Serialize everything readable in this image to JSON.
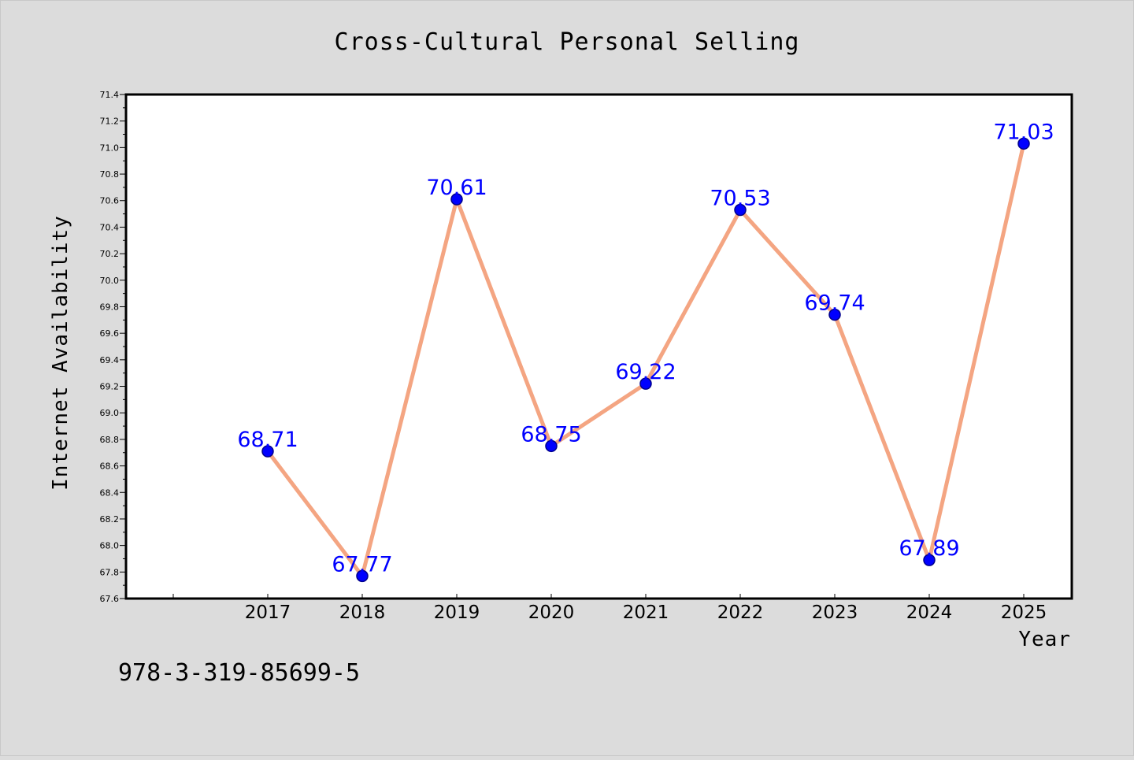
{
  "chart_data": {
    "type": "line",
    "title": "Cross-Cultural Personal Selling",
    "xlabel": "Year",
    "ylabel": "Internet Availability",
    "categories": [
      "2017",
      "2018",
      "2019",
      "2020",
      "2021",
      "2022",
      "2023",
      "2024",
      "2025"
    ],
    "values": [
      68.71,
      67.77,
      70.61,
      68.75,
      69.22,
      70.53,
      69.74,
      67.89,
      71.03
    ],
    "data_labels": [
      "68.71",
      "67.77",
      "70.61",
      "68.75",
      "69.22",
      "70.53",
      "69.74",
      "67.89",
      "71.03"
    ],
    "ylim": [
      67.6,
      71.4
    ],
    "ytick_step": 0.2,
    "yticks": [
      "67.6",
      "67.8",
      "68.0",
      "68.2",
      "68.4",
      "68.6",
      "68.8",
      "69.0",
      "69.2",
      "69.4",
      "69.6",
      "69.8",
      "70.0",
      "70.2",
      "70.4",
      "70.6",
      "70.8",
      "71.0",
      "71.2",
      "71.4"
    ],
    "grid": false,
    "legend": "none",
    "colors": {
      "line": "#f4a582",
      "marker": "#0000ff",
      "marker_edge": "#00008b",
      "data_label": "#0000ff",
      "plot_background": "#ffffff",
      "figure_background": "#dcdcdc"
    }
  },
  "footer": {
    "isbn": "978-3-319-85699-5"
  }
}
